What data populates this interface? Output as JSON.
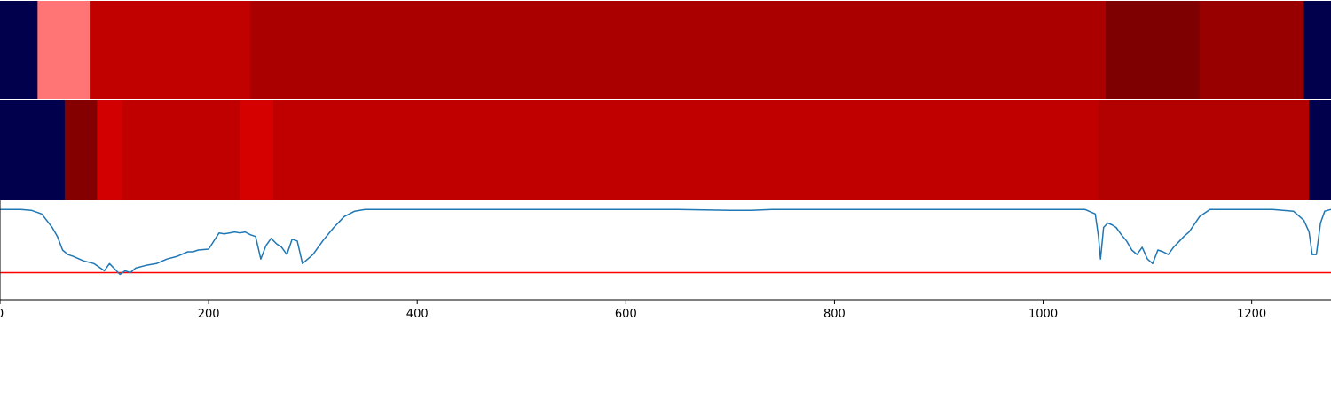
{
  "chart_data": [
    {
      "type": "heatmap",
      "segments": [
        {
          "x0": 0,
          "x1": 36,
          "color": "#00004c"
        },
        {
          "x0": 36,
          "x1": 86,
          "color": "#ff7474"
        },
        {
          "x0": 86,
          "x1": 240,
          "color": "#c10000"
        },
        {
          "x0": 240,
          "x1": 1060,
          "color": "#aa0000"
        },
        {
          "x0": 1060,
          "x1": 1150,
          "color": "#7f0000"
        },
        {
          "x0": 1150,
          "x1": 1250,
          "color": "#980000"
        },
        {
          "x0": 1250,
          "x1": 1276,
          "color": "#00004c"
        }
      ]
    },
    {
      "type": "heatmap",
      "segments": [
        {
          "x0": 0,
          "x1": 62,
          "color": "#00004c"
        },
        {
          "x0": 62,
          "x1": 93,
          "color": "#840000"
        },
        {
          "x0": 93,
          "x1": 117,
          "color": "#d20000"
        },
        {
          "x0": 117,
          "x1": 124,
          "color": "#c10000"
        },
        {
          "x0": 124,
          "x1": 230,
          "color": "#c00000"
        },
        {
          "x0": 230,
          "x1": 262,
          "color": "#d50000"
        },
        {
          "x0": 262,
          "x1": 1053,
          "color": "#c00000"
        },
        {
          "x0": 1053,
          "x1": 1255,
          "color": "#b30000"
        },
        {
          "x0": 1255,
          "x1": 1276,
          "color": "#00004c"
        }
      ]
    },
    {
      "type": "line",
      "xlim": [
        0,
        1276
      ],
      "ylim": [
        -1,
        0.1
      ],
      "xticks": [
        0,
        200,
        400,
        600,
        800,
        1000,
        1200
      ],
      "line_color": "#1f77b4",
      "threshold": {
        "y": -0.7,
        "color": "#ff0000"
      },
      "series": [
        {
          "x": [
            0,
            10,
            20,
            30,
            40,
            50,
            55,
            60,
            65,
            70,
            80,
            90,
            95,
            100,
            105,
            110,
            115,
            120,
            125,
            130,
            140,
            150,
            160,
            170,
            180,
            185,
            190,
            200,
            210,
            215,
            220,
            225,
            230,
            235,
            240,
            245,
            250,
            255,
            260,
            265,
            270,
            275,
            280,
            285,
            290,
            300,
            310,
            320,
            330,
            340,
            350,
            400,
            500,
            600,
            650,
            700,
            720,
            740,
            800,
            900,
            1000,
            1040,
            1050,
            1053,
            1055,
            1058,
            1062,
            1066,
            1070,
            1075,
            1080,
            1085,
            1090,
            1095,
            1100,
            1105,
            1110,
            1115,
            1120,
            1125,
            1130,
            1135,
            1140,
            1150,
            1160,
            1180,
            1200,
            1220,
            1240,
            1250,
            1255,
            1258,
            1262,
            1266,
            1270,
            1276
          ],
          "y": [
            0.0,
            0.0,
            0.0,
            -0.01,
            -0.05,
            -0.2,
            -0.3,
            -0.45,
            -0.5,
            -0.52,
            -0.57,
            -0.6,
            -0.64,
            -0.68,
            -0.6,
            -0.66,
            -0.72,
            -0.68,
            -0.7,
            -0.65,
            -0.62,
            -0.6,
            -0.55,
            -0.52,
            -0.47,
            -0.47,
            -0.45,
            -0.44,
            -0.26,
            -0.27,
            -0.26,
            -0.25,
            -0.26,
            -0.25,
            -0.28,
            -0.3,
            -0.55,
            -0.4,
            -0.32,
            -0.38,
            -0.42,
            -0.5,
            -0.33,
            -0.35,
            -0.6,
            -0.5,
            -0.34,
            -0.2,
            -0.08,
            -0.02,
            0.0,
            0.0,
            0.0,
            0.0,
            0.0,
            -0.01,
            -0.01,
            0.0,
            0.0,
            0.0,
            0.0,
            0.0,
            -0.05,
            -0.3,
            -0.55,
            -0.2,
            -0.15,
            -0.17,
            -0.2,
            -0.28,
            -0.35,
            -0.45,
            -0.5,
            -0.42,
            -0.55,
            -0.6,
            -0.45,
            -0.47,
            -0.5,
            -0.42,
            -0.36,
            -0.3,
            -0.25,
            -0.08,
            0.0,
            0.0,
            0.0,
            0.0,
            -0.02,
            -0.12,
            -0.25,
            -0.5,
            -0.5,
            -0.15,
            -0.02,
            0.0
          ]
        }
      ]
    }
  ]
}
